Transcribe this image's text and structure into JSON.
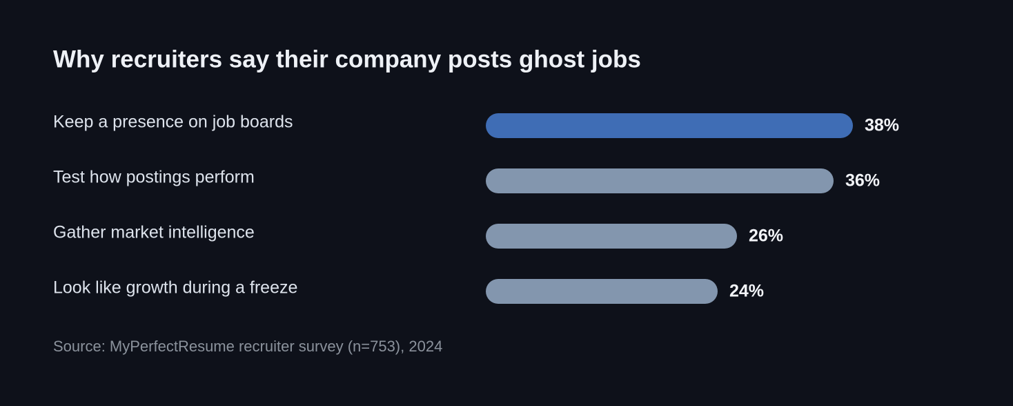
{
  "chart_data": {
    "type": "bar",
    "orientation": "horizontal",
    "title": "Why recruiters say their company posts ghost jobs",
    "categories": [
      "Keep a presence on job boards",
      "Test how postings perform",
      "Gather market intelligence",
      "Look like growth during a freeze"
    ],
    "values": [
      38,
      36,
      26,
      24
    ],
    "value_labels": [
      "38%",
      "36%",
      "26%",
      "24%"
    ],
    "colors": [
      "#3f6db5",
      "#8396ae",
      "#8396ae",
      "#8396ae"
    ],
    "source": "Source: MyPerfectResume recruiter survey (n=753), 2024"
  }
}
